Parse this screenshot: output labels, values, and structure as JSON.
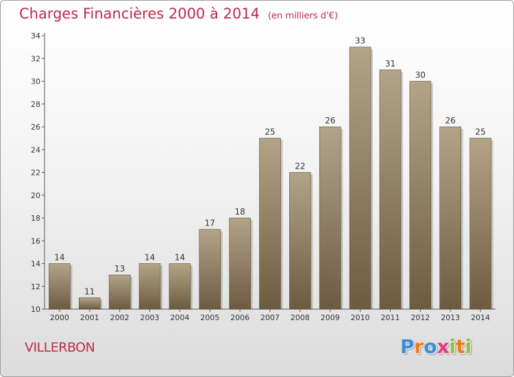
{
  "title": "Charges Financières 2000 à 2014",
  "unit_label": "(en milliers d'€)",
  "commune": "VILLERBON",
  "logo": {
    "text": "Proxiti",
    "letters": [
      "P",
      "r",
      "o",
      "x",
      "i",
      "t",
      "i"
    ],
    "colors": [
      "#3a8fd8",
      "#f07a1a",
      "#3a8fd8",
      "#e63a7a",
      "#8cc63f",
      "#f07a1a",
      "#8cc63f"
    ]
  },
  "colors": {
    "title": "#c0284a",
    "bar_top": "#b3a488",
    "bar_bottom": "#6d5b40"
  },
  "chart_data": {
    "type": "bar",
    "categories": [
      "2000",
      "2001",
      "2002",
      "2003",
      "2004",
      "2005",
      "2006",
      "2007",
      "2008",
      "2009",
      "2010",
      "2011",
      "2012",
      "2013",
      "2014"
    ],
    "values": [
      14,
      11,
      13,
      14,
      14,
      17,
      18,
      25,
      22,
      26,
      33,
      31,
      30,
      26,
      25
    ],
    "ylim": [
      10,
      34
    ],
    "yticks": [
      10,
      12,
      14,
      16,
      18,
      20,
      22,
      24,
      26,
      28,
      30,
      32,
      34
    ],
    "grid": false,
    "data_labels": true
  }
}
